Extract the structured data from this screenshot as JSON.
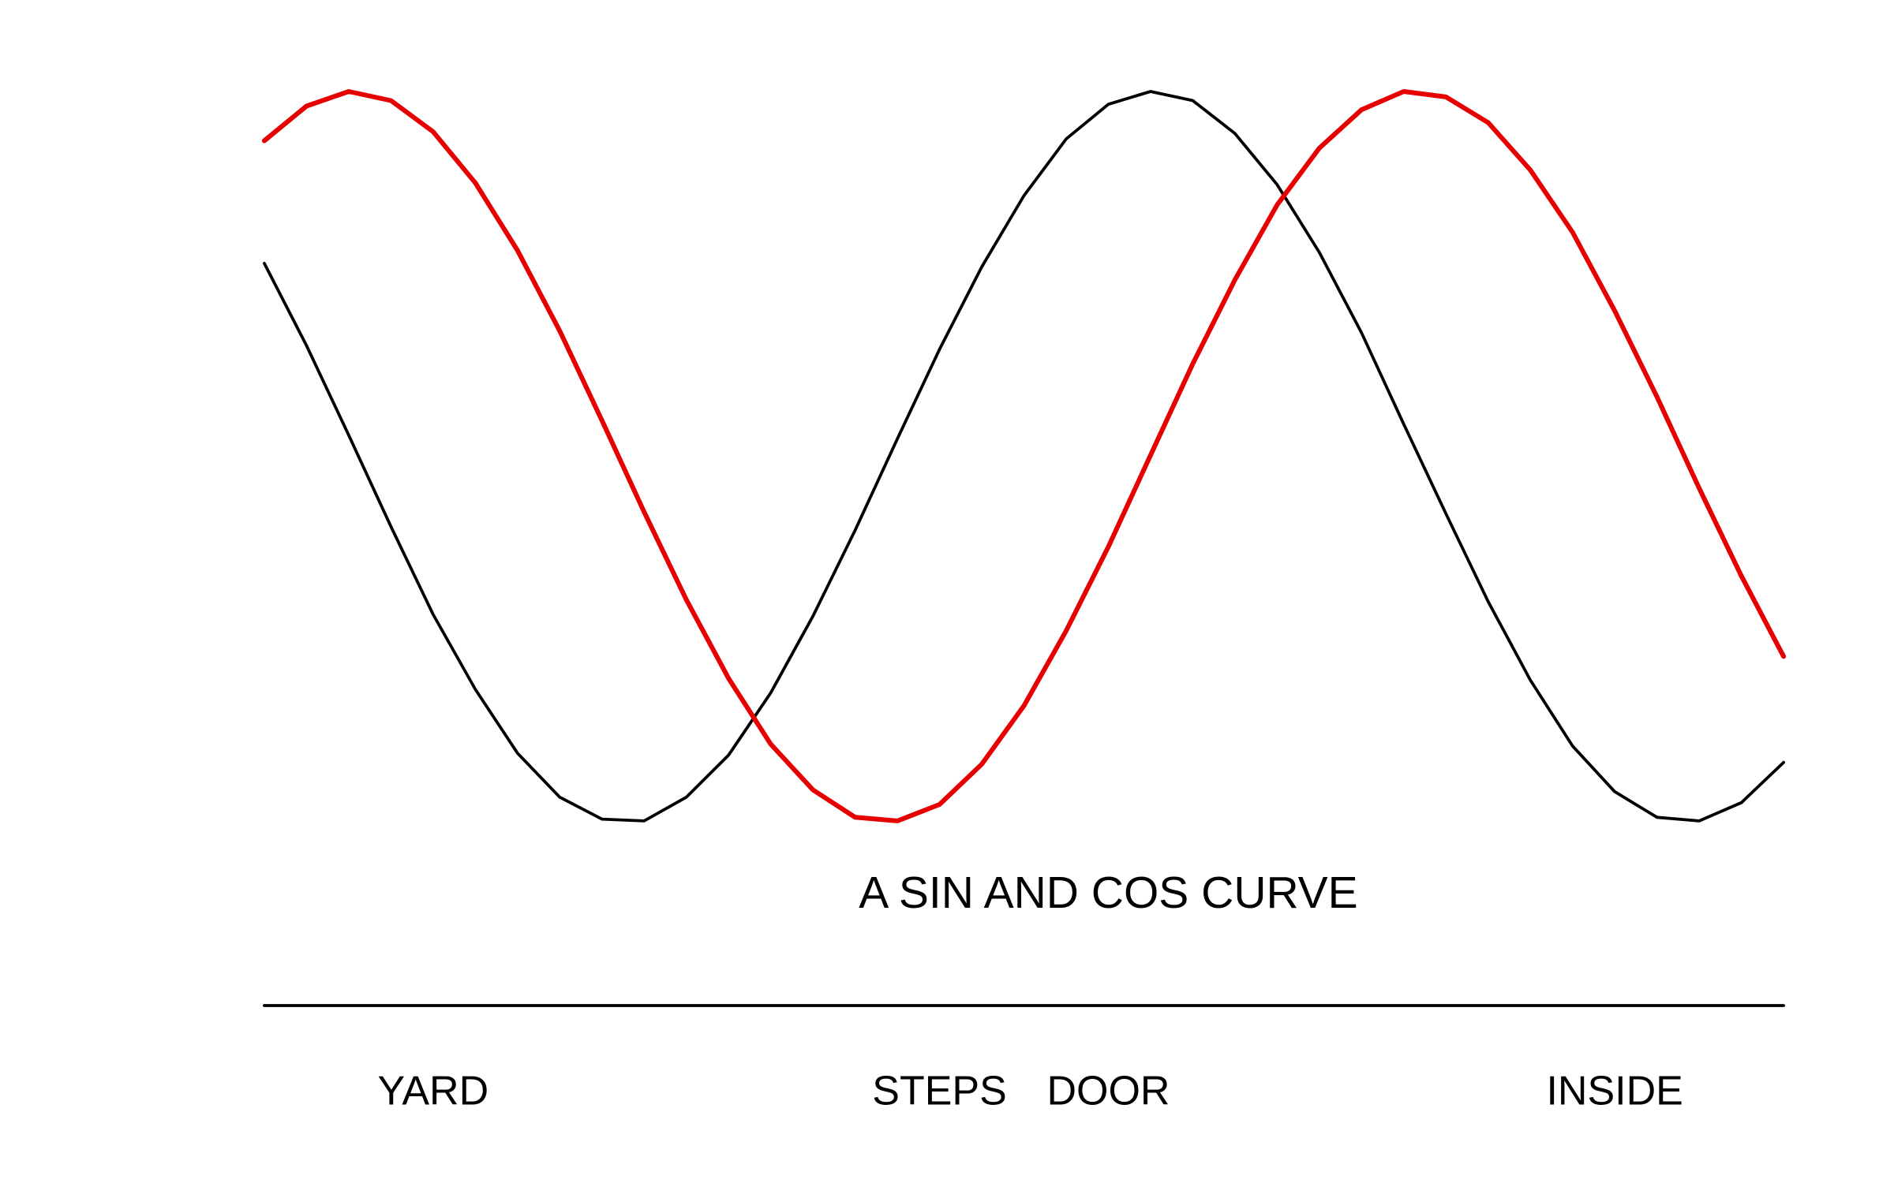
{
  "chart_data": {
    "type": "line",
    "annotation": {
      "text": "A SIN AND COS CURVE",
      "x": 4,
      "y": 0.1
    },
    "xlim": [
      -1.5,
      8.5
    ],
    "ylim": [
      -0.75,
      4.75
    ],
    "xticks": [
      {
        "value": 0,
        "label": "YARD"
      },
      {
        "value": 3,
        "label": "STEPS"
      },
      {
        "value": 4,
        "label": "DOOR"
      },
      {
        "value": 7,
        "label": "INSIDE"
      }
    ],
    "minor_xticks": [
      1.5,
      3.5,
      5.5
    ],
    "minor_yticks": [
      0,
      1,
      2,
      3,
      4
    ],
    "grid": "minor",
    "x": [
      -1,
      -0.75,
      -0.5,
      -0.25,
      0,
      0.25,
      0.5,
      0.75,
      1,
      1.25,
      1.5,
      1.75,
      2,
      2.25,
      2.5,
      2.75,
      3,
      3.25,
      3.5,
      3.75,
      4,
      4.25,
      4.5,
      4.75,
      5,
      5.25,
      5.5,
      5.75,
      6,
      6.25,
      6.5,
      6.75,
      7,
      7.25,
      7.5,
      7.75,
      8
    ],
    "series": [
      {
        "color": "#000000",
        "values": [
          3.56,
          3.11,
          2.62,
          2.12,
          1.64,
          1.23,
          0.88,
          0.64,
          0.52,
          0.51,
          0.64,
          0.87,
          1.21,
          1.63,
          2.1,
          2.6,
          3.09,
          3.54,
          3.93,
          4.24,
          4.43,
          4.5,
          4.45,
          4.27,
          3.99,
          3.62,
          3.18,
          2.68,
          2.19,
          1.71,
          1.28,
          0.92,
          0.67,
          0.53,
          0.51,
          0.61,
          0.83
        ]
      },
      {
        "color": "#e60000",
        "values": [
          4.23,
          4.42,
          4.5,
          4.45,
          4.28,
          4.0,
          3.63,
          3.19,
          2.7,
          2.2,
          1.72,
          1.29,
          0.93,
          0.68,
          0.53,
          0.51,
          0.6,
          0.82,
          1.14,
          1.55,
          2.01,
          2.51,
          3.01,
          3.47,
          3.88,
          4.19,
          4.4,
          4.5,
          4.47,
          4.33,
          4.07,
          3.73,
          3.3,
          2.83,
          2.33,
          1.85,
          1.41
        ]
      },
      {
        "color": "#000000",
        "x": [
          -1,
          8
        ],
        "values": [
          -0.5,
          -0.5
        ]
      }
    ]
  }
}
